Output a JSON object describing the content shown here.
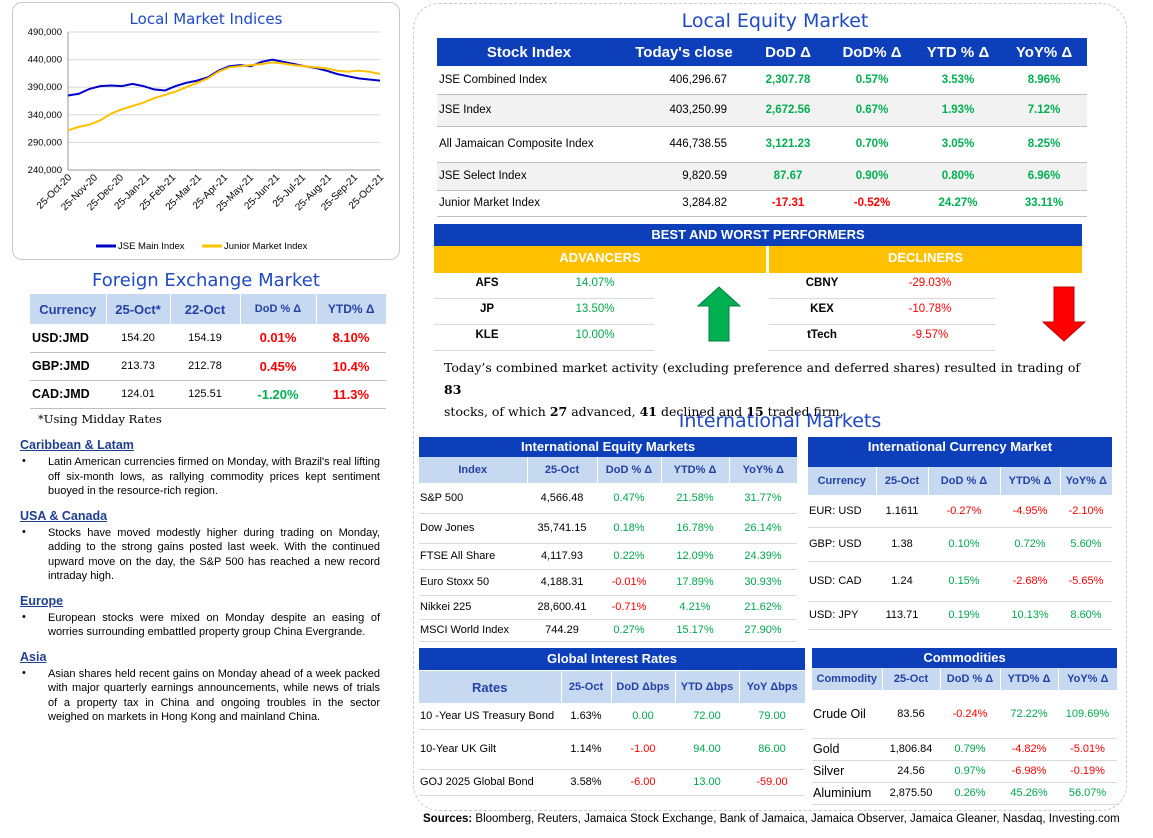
{
  "chart_data": {
    "type": "line",
    "title": "Local Market Indices",
    "x_ticks": [
      "25-Oct-20",
      "25-Nov-20",
      "25-Dec-20",
      "25-Jan-21",
      "25-Feb-21",
      "25-Mar-21",
      "25-Apr-21",
      "25-May-21",
      "25-Jun-21",
      "25-Jul-21",
      "25-Aug-21",
      "25-Sep-21",
      "25-Oct-21"
    ],
    "y_ticks": [
      "490,000",
      "440,000",
      "390,000",
      "340,000",
      "290,000",
      "240,000"
    ],
    "ylim": [
      240000,
      490000
    ],
    "grid": true,
    "legend_position": "bottom",
    "series": [
      {
        "name": "JSE Main Index",
        "color": "#0000cc",
        "values": [
          375000,
          378000,
          387000,
          392000,
          393000,
          392000,
          396000,
          392000,
          386000,
          384000,
          392000,
          398000,
          402000,
          408000,
          420000,
          428000,
          430000,
          428000,
          436000,
          440000,
          436000,
          432000,
          428000,
          425000,
          420000,
          414000,
          410000,
          406000,
          404000,
          402000
        ]
      },
      {
        "name": "Junior Market Index",
        "color": "#ffc000",
        "values": [
          312000,
          318000,
          322000,
          330000,
          342000,
          350000,
          356000,
          362000,
          370000,
          376000,
          382000,
          390000,
          398000,
          406000,
          418000,
          426000,
          428000,
          430000,
          432000,
          435000,
          433000,
          430000,
          428000,
          426000,
          424000,
          420000,
          418000,
          420000,
          418000,
          414000
        ]
      }
    ]
  },
  "equity": {
    "title": "Local Equity Market",
    "headers": [
      "Stock Index",
      "Today's close",
      "DoD  Δ",
      "DoD% Δ",
      "YTD % Δ",
      "YoY% Δ"
    ],
    "rows": [
      {
        "name": "JSE Combined Index",
        "close": "406,296.67",
        "dod": "2,307.78",
        "dodp": "0.57%",
        "ytd": "3.53%",
        "yoy": "8.96%"
      },
      {
        "name": "JSE Index",
        "close": "403,250.99",
        "dod": "2,672.56",
        "dodp": "0.67%",
        "ytd": "1.93%",
        "yoy": "7.12%"
      },
      {
        "name": "All Jamaican Composite Index",
        "close": "446,738.55",
        "dod": "3,121.23",
        "dodp": "0.70%",
        "ytd": "3.05%",
        "yoy": "8.25%"
      },
      {
        "name": "JSE Select Index",
        "close": "9,820.59",
        "dod": "87.67",
        "dodp": "0.90%",
        "ytd": "0.80%",
        "yoy": "6.96%"
      },
      {
        "name": "Junior Market Index",
        "close": "3,284.82",
        "dod": "-17.31",
        "dodp": "-0.52%",
        "ytd": "24.27%",
        "yoy": "33.11%"
      }
    ]
  },
  "performers": {
    "title": "BEST AND WORST PERFORMERS",
    "advancers_label": "ADVANCERS",
    "decliners_label": "DECLINERS",
    "advancers": [
      {
        "sym": "AFS",
        "val": "14.07%"
      },
      {
        "sym": "JP",
        "val": "13.50%"
      },
      {
        "sym": "KLE",
        "val": "10.00%"
      }
    ],
    "decliners": [
      {
        "sym": "CBNY",
        "val": "-29.03%"
      },
      {
        "sym": "KEX",
        "val": "-10.78%"
      },
      {
        "sym": "tTech",
        "val": "-9.57%"
      }
    ]
  },
  "summary": {
    "text1": "Today’s combined market activity (excluding preference and deferred shares) resulted in trading of ",
    "n_traded": "83",
    "text2": "stocks, of which ",
    "n_adv": "27",
    "text3": " advanced, ",
    "n_dec": "41",
    "text4": " declined and ",
    "n_firm": "15",
    "text5": " traded firm."
  },
  "fx": {
    "title": "Foreign Exchange Market",
    "headers": [
      "Currency",
      "25-Oct*",
      "22-Oct",
      "DoD % Δ",
      "YTD% Δ"
    ],
    "rows": [
      {
        "cur": "USD:JMD",
        "a": "154.20",
        "b": "154.19",
        "dod": "0.01%",
        "ytd": "8.10%",
        "dod_pos": false
      },
      {
        "cur": "GBP:JMD",
        "a": "213.73",
        "b": "212.78",
        "dod": "0.45%",
        "ytd": "10.4%",
        "dod_pos": false
      },
      {
        "cur": "CAD:JMD",
        "a": "124.01",
        "b": "125.51",
        "dod": "-1.20%",
        "ytd": "11.3%",
        "dod_pos": true
      }
    ],
    "note": "*Using Midday Rates"
  },
  "news": [
    {
      "head": "Caribbean & Latam",
      "text": "Latin American currencies firmed on Monday, with Brazil's real lifting off six-month lows, as rallying commodity prices kept sentiment buoyed in the resource-rich region."
    },
    {
      "head": "USA & Canada",
      "text": "Stocks have moved modestly higher during trading on Monday, adding to the strong gains posted last week. With the continued upward move on the day, the S&P 500 has reached a new record intraday high."
    },
    {
      "head": "Europe",
      "text": "European stocks were mixed on Monday despite an easing of worries surrounding embattled property group China Evergrande."
    },
    {
      "head": "Asia",
      "text": "Asian shares held recent gains on Monday ahead of a week packed with major quarterly earnings announcements, while news of trials of a property tax in China and ongoing troubles in the sector weighed on markets in Hong Kong and mainland China."
    }
  ],
  "intl": {
    "title": "International Markets",
    "equity_title": "International Equity Markets",
    "equity_headers": [
      "Index",
      "25-Oct",
      "DoD % Δ",
      "YTD% Δ",
      "YoY% Δ"
    ],
    "equity_rows": [
      {
        "n": "S&P 500",
        "v": "4,566.48",
        "d": "0.47%",
        "y": "21.58%",
        "yy": "31.77%"
      },
      {
        "n": "Dow Jones",
        "v": "35,741.15",
        "d": "0.18%",
        "y": "16.78%",
        "yy": "26.14%"
      },
      {
        "n": "FTSE All Share",
        "v": "4,117.93",
        "d": "0.22%",
        "y": "12.09%",
        "yy": "24.39%"
      },
      {
        "n": "Euro Stoxx 50",
        "v": "4,188.31",
        "d": "-0.01%",
        "y": "17.89%",
        "yy": "30.93%"
      },
      {
        "n": "Nikkei 225",
        "v": "28,600.41",
        "d": "-0.71%",
        "y": "4.21%",
        "yy": "21.62%"
      },
      {
        "n": "MSCI World Index",
        "v": "744.29",
        "d": "0.27%",
        "y": "15.17%",
        "yy": "27.90%"
      }
    ],
    "currency_title": "International Currency Market",
    "currency_headers": [
      "Currency",
      "25-Oct",
      "DoD % Δ",
      "YTD% Δ",
      "YoY% Δ"
    ],
    "currency_rows": [
      {
        "n": "EUR: USD",
        "v": "1.1611",
        "d": "-0.27%",
        "y": "-4.95%",
        "yy": "-2.10%"
      },
      {
        "n": "GBP: USD",
        "v": "1.38",
        "d": "0.10%",
        "y": "0.72%",
        "yy": "5.60%"
      },
      {
        "n": "USD: CAD",
        "v": "1.24",
        "d": "0.15%",
        "y": "-2.68%",
        "yy": "-5.65%"
      },
      {
        "n": "USD: JPY",
        "v": "113.71",
        "d": "0.19%",
        "y": "10.13%",
        "yy": "8.60%"
      }
    ],
    "rates_title": "Global Interest Rates",
    "rates_headers": [
      "Rates",
      "25-Oct",
      "DoD Δbps",
      "YTD Δbps",
      "YoY Δbps"
    ],
    "rates_rows": [
      {
        "n": "10 -Year US Treasury Bond",
        "v": "1.63%",
        "d": "0.00",
        "y": "72.00",
        "yy": "79.00"
      },
      {
        "n": "10-Year UK Gilt",
        "v": "1.14%",
        "d": "-1.00",
        "y": "94.00",
        "yy": "86.00"
      },
      {
        "n": "GOJ 2025 Global Bond",
        "v": "3.58%",
        "d": "-6.00",
        "y": "13.00",
        "yy": "-59.00"
      }
    ],
    "comm_title": "Commodities",
    "comm_headers": [
      "Commodity",
      "25-Oct",
      "DoD % Δ",
      "YTD% Δ",
      "YoY% Δ"
    ],
    "comm_rows": [
      {
        "n": "Crude Oil",
        "v": "83.56",
        "d": "-0.24%",
        "y": "72.22%",
        "yy": "109.69%"
      },
      {
        "n": "Gold",
        "v": "1,806.84",
        "d": "0.79%",
        "y": "-4.82%",
        "yy": "-5.01%"
      },
      {
        "n": "Silver",
        "v": "24.56",
        "d": "0.97%",
        "y": "-6.98%",
        "yy": "-0.19%"
      },
      {
        "n": "Aluminium",
        "v": "2,875.50",
        "d": "0.26%",
        "y": "45.26%",
        "yy": "56.07%"
      }
    ]
  },
  "sources": {
    "label": "Sources:",
    "text": " Bloomberg, Reuters, Jamaica Stock Exchange, Bank of Jamaica, Jamaica Observer, Jamaica Gleaner, Nasdaq, Investing.com"
  }
}
